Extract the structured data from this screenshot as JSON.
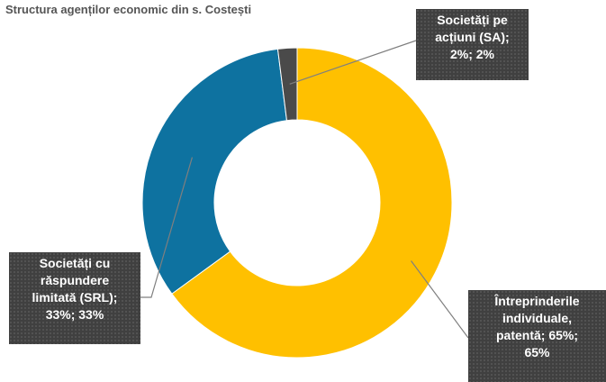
{
  "chart_data": {
    "type": "pie",
    "variant": "donut",
    "title": "Structura agenților economic din s. Costești",
    "categories": [
      "Întreprinderile individuale, patentă",
      "Societăți cu răspundere limitată (SRL)",
      "Societăți pe acțiuni (SA)"
    ],
    "values": [
      65,
      33,
      2
    ],
    "colors": [
      "#FFC000",
      "#0E72A0",
      "#4A4A4A"
    ],
    "start_angle_deg": 0,
    "direction": "clockwise",
    "data_labels": [
      [
        "Întreprinderile",
        "individuale,",
        "patentă; 65%;",
        "65%"
      ],
      [
        "Societăți cu",
        "răspundere",
        "limitată (SRL);",
        "33%; 33%"
      ],
      [
        "Societăți pe",
        "acțiuni (SA);",
        "2%; 2%"
      ]
    ],
    "legend": "none"
  }
}
